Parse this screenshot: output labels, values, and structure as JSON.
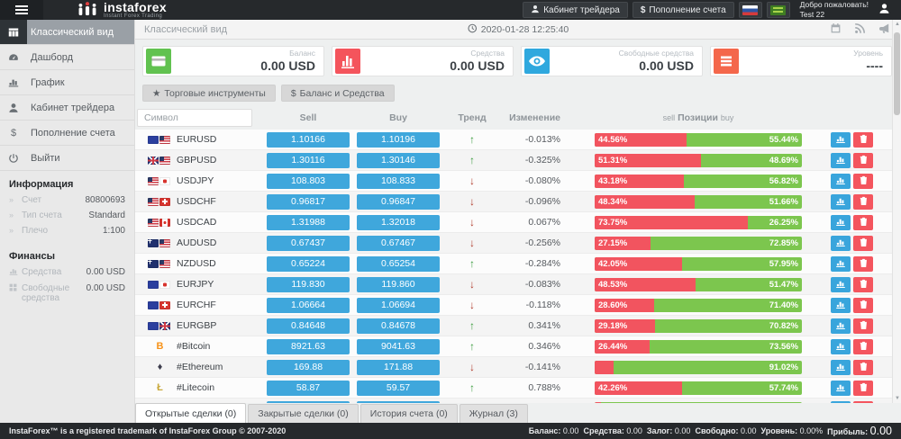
{
  "topbar": {
    "logo": {
      "text": "instaforex",
      "subtitle": "Instant Forex Trading"
    },
    "trader_cabinet_label": "Кабинет трейдера",
    "deposit_symbol": "$",
    "deposit_label": "Пополнение счета",
    "welcome_title": "Добро пожаловать!",
    "welcome_user": "Test 22"
  },
  "sidebar": {
    "items": [
      {
        "id": "classic-view",
        "label": "Классический вид",
        "icon": "columns",
        "active": true
      },
      {
        "id": "dashboard",
        "label": "Дашборд",
        "icon": "dashboard",
        "active": false
      },
      {
        "id": "chart",
        "label": "График",
        "icon": "chart",
        "active": false
      },
      {
        "id": "trader-cabinet",
        "label": "Кабинет трейдера",
        "icon": "user",
        "active": false
      },
      {
        "id": "deposit",
        "label": "Пополнение счета",
        "icon": "$",
        "active": false
      },
      {
        "id": "logout",
        "label": "Выйти",
        "icon": "power",
        "active": false
      }
    ],
    "sections": [
      {
        "title": "Информация",
        "rows": [
          {
            "icon": "»",
            "label": "Счет",
            "value": "80800693"
          },
          {
            "icon": "»",
            "label": "Тип счета",
            "value": "Standard"
          },
          {
            "icon": "»",
            "label": "Плечо",
            "value": "1:100"
          }
        ]
      },
      {
        "title": "Финансы",
        "rows": [
          {
            "icon": "chart-mini",
            "label": "Средства",
            "value": "0.00 USD"
          },
          {
            "icon": "grid",
            "label": "Свободные средства",
            "value": "0.00 USD"
          }
        ]
      }
    ]
  },
  "content_header": {
    "title": "Классический вид",
    "datetime": "2020-01-28 12:25:40"
  },
  "cards": [
    {
      "id": "balance",
      "label": "Баланс",
      "value": "0.00 USD",
      "icon": "credit-card",
      "color": "#61c250"
    },
    {
      "id": "funds",
      "label": "Средства",
      "value": "0.00 USD",
      "icon": "bar-chart",
      "color": "#f4545c"
    },
    {
      "id": "free-funds",
      "label": "Свободные средства",
      "value": "0.00 USD",
      "icon": "eye",
      "color": "#2fa8de"
    },
    {
      "id": "level",
      "label": "Уровень",
      "value": "----",
      "icon": "list",
      "color": "#f4674b"
    }
  ],
  "toolbar": {
    "instruments_symbol": "★",
    "instruments_label": "Торговые инструменты",
    "balance_symbol": "$",
    "balance_label": "Баланс и Средства"
  },
  "table": {
    "search_placeholder": "Символ",
    "headers": {
      "sell": "Sell",
      "buy": "Buy",
      "trend": "Тренд",
      "change": "Изменение",
      "positions_sell": "sell",
      "positions": "Позиции",
      "positions_buy": "buy"
    },
    "rows": [
      {
        "symbol": "EURUSD",
        "flags": [
          "eu",
          "us"
        ],
        "sell": "1.10166",
        "buy": "1.10196",
        "trend": "up",
        "change": "-0.013%",
        "sell_pct": 44.56,
        "buy_pct": 55.44,
        "sell_label": "44.56%",
        "buy_label": "55.44%"
      },
      {
        "symbol": "GBPUSD",
        "flags": [
          "gb",
          "us"
        ],
        "sell": "1.30116",
        "buy": "1.30146",
        "trend": "up",
        "change": "-0.325%",
        "sell_pct": 51.31,
        "buy_pct": 48.69,
        "sell_label": "51.31%",
        "buy_label": "48.69%"
      },
      {
        "symbol": "USDJPY",
        "flags": [
          "us",
          "jp"
        ],
        "sell": "108.803",
        "buy": "108.833",
        "trend": "down",
        "change": "-0.080%",
        "sell_pct": 43.18,
        "buy_pct": 56.82,
        "sell_label": "43.18%",
        "buy_label": "56.82%"
      },
      {
        "symbol": "USDCHF",
        "flags": [
          "us",
          "ch"
        ],
        "sell": "0.96817",
        "buy": "0.96847",
        "trend": "down",
        "change": "-0.096%",
        "sell_pct": 48.34,
        "buy_pct": 51.66,
        "sell_label": "48.34%",
        "buy_label": "51.66%"
      },
      {
        "symbol": "USDCAD",
        "flags": [
          "us",
          "ca"
        ],
        "sell": "1.31988",
        "buy": "1.32018",
        "trend": "down",
        "change": "0.067%",
        "sell_pct": 73.75,
        "buy_pct": 26.25,
        "sell_label": "73.75%",
        "buy_label": "26.25%"
      },
      {
        "symbol": "AUDUSD",
        "flags": [
          "au",
          "us"
        ],
        "sell": "0.67437",
        "buy": "0.67467",
        "trend": "down",
        "change": "-0.256%",
        "sell_pct": 27.15,
        "buy_pct": 72.85,
        "sell_label": "27.15%",
        "buy_label": "72.85%"
      },
      {
        "symbol": "NZDUSD",
        "flags": [
          "nz",
          "us"
        ],
        "sell": "0.65224",
        "buy": "0.65254",
        "trend": "up",
        "change": "-0.284%",
        "sell_pct": 42.05,
        "buy_pct": 57.95,
        "sell_label": "42.05%",
        "buy_label": "57.95%"
      },
      {
        "symbol": "EURJPY",
        "flags": [
          "eu",
          "jp"
        ],
        "sell": "119.830",
        "buy": "119.860",
        "trend": "down",
        "change": "-0.083%",
        "sell_pct": 48.53,
        "buy_pct": 51.47,
        "sell_label": "48.53%",
        "buy_label": "51.47%"
      },
      {
        "symbol": "EURCHF",
        "flags": [
          "eu",
          "ch"
        ],
        "sell": "1.06664",
        "buy": "1.06694",
        "trend": "down",
        "change": "-0.118%",
        "sell_pct": 28.6,
        "buy_pct": 71.4,
        "sell_label": "28.60%",
        "buy_label": "71.40%"
      },
      {
        "symbol": "EURGBP",
        "flags": [
          "eu",
          "gb"
        ],
        "sell": "0.84648",
        "buy": "0.84678",
        "trend": "up",
        "change": "0.341%",
        "sell_pct": 29.18,
        "buy_pct": 70.82,
        "sell_label": "29.18%",
        "buy_label": "70.82%"
      },
      {
        "symbol": "#Bitcoin",
        "crypto": {
          "symbol": "B",
          "color": "#f7931a"
        },
        "sell": "8921.63",
        "buy": "9041.63",
        "trend": "up",
        "change": "0.346%",
        "sell_pct": 26.44,
        "buy_pct": 73.56,
        "sell_label": "26.44%",
        "buy_label": "73.56%"
      },
      {
        "symbol": "#Ethereum",
        "crypto": {
          "symbol": "♦",
          "color": "#3d3d4d"
        },
        "sell": "169.88",
        "buy": "171.88",
        "trend": "down",
        "change": "-0.141%",
        "sell_pct": 8.98,
        "buy_pct": 91.02,
        "sell_label": "",
        "buy_label": "91.02%"
      },
      {
        "symbol": "#Litecoin",
        "crypto": {
          "symbol": "Ł",
          "color": "#c9a83a"
        },
        "sell": "58.87",
        "buy": "59.57",
        "trend": "up",
        "change": "0.788%",
        "sell_pct": 42.26,
        "buy_pct": 57.74,
        "sell_label": "42.26%",
        "buy_label": "57.74%"
      },
      {
        "symbol": "",
        "partial": true,
        "sell": "",
        "buy": "",
        "trend": "down",
        "change": "",
        "sell_pct": 3,
        "buy_pct": 97,
        "sell_label": "",
        "buy_label": ""
      }
    ]
  },
  "tabs": [
    {
      "id": "open-trades",
      "label": "Открытые сделки (0)",
      "active": true
    },
    {
      "id": "closed-trades",
      "label": "Закрытые сделки (0)",
      "active": false
    },
    {
      "id": "account-history",
      "label": "История счета (0)",
      "active": false
    },
    {
      "id": "journal",
      "label": "Журнал (3)",
      "active": false
    }
  ],
  "footer": {
    "copyright": "InstaForex™ is a registered trademark of InstaForex Group © 2007-2020",
    "stats": [
      {
        "label": "Баланс:",
        "value": "0.00",
        "big": false
      },
      {
        "label": "Средства:",
        "value": "0.00",
        "big": false
      },
      {
        "label": "Залог:",
        "value": "0.00",
        "big": false
      },
      {
        "label": "Свободно:",
        "value": "0.00",
        "big": false
      },
      {
        "label": "Уровень:",
        "value": "0.00%",
        "big": false
      },
      {
        "label": "Прибыль:",
        "value": "0.00",
        "big": true
      }
    ]
  },
  "colors": {
    "accent_blue": "#3fa7dc",
    "bar_red": "#f2545f",
    "bar_green": "#7cc64e",
    "topbar_bg": "#26292c",
    "trend_up": "#399b3d",
    "trend_down": "#b03a2a"
  }
}
